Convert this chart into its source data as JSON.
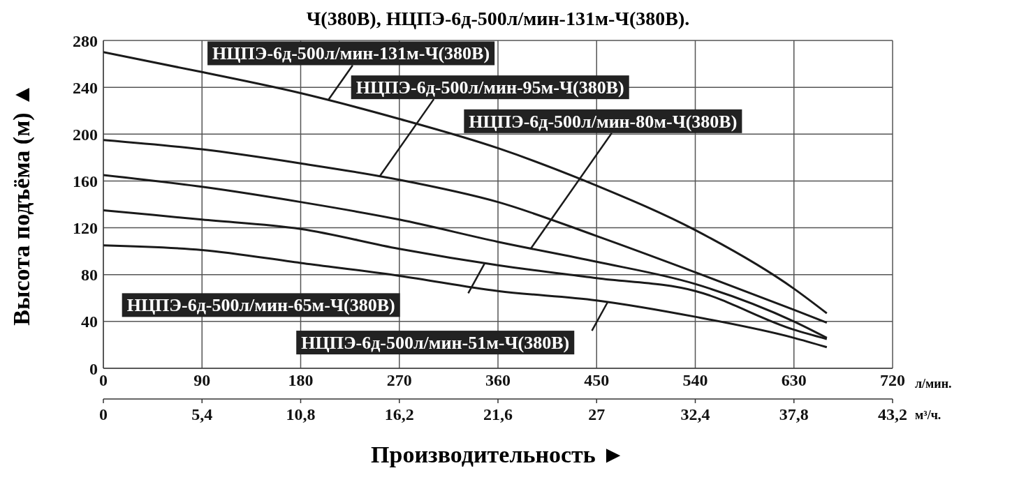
{
  "chart_data": {
    "type": "line",
    "title": "Ч(380В), НЦПЭ-6д-500л/мин-131м-Ч(380В).",
    "xlabel": "Производительность ►",
    "ylabel": "Высота подъёма (м) ▲",
    "annotations": [
      "л/мин.",
      "м³/ч."
    ],
    "x": [
      0,
      90,
      180,
      270,
      360,
      450,
      540,
      630,
      660
    ],
    "series": [
      {
        "name": "НЦПЭ-6д-500л/мин-131м-Ч(380В)",
        "color": "#1a1a1a",
        "values": [
          270,
          253,
          235,
          213,
          188,
          156,
          118,
          68,
          47
        ]
      },
      {
        "name": "НЦПЭ-6д-500л/мин-95м-Ч(380В)",
        "color": "#1a1a1a",
        "values": [
          195,
          187,
          175,
          161,
          142,
          113,
          82,
          50,
          39
        ]
      },
      {
        "name": "НЦПЭ-6д-500л/мин-80м-Ч(380В)",
        "color": "#1a1a1a",
        "values": [
          165,
          155,
          142,
          127,
          108,
          91,
          72,
          40,
          26
        ]
      },
      {
        "name": "НЦПЭ-6д-500л/мин-65м-Ч(380В)",
        "color": "#1a1a1a",
        "values": [
          135,
          127,
          119,
          102,
          88,
          77,
          66,
          33,
          25
        ]
      },
      {
        "name": "НЦПЭ-6д-500л/мин-51м-Ч(380В)",
        "color": "#1a1a1a",
        "values": [
          105,
          101,
          90,
          79,
          66,
          58,
          44,
          26,
          18
        ]
      }
    ],
    "xlim": [
      0,
      720
    ],
    "xticks": [
      0,
      90,
      180,
      270,
      360,
      450,
      540,
      630,
      720
    ],
    "x2lim": [
      0,
      43.2
    ],
    "x2ticks": [
      0,
      {
        "value": 5.4,
        "label": "5,4"
      },
      {
        "value": 10.8,
        "label": "10,8"
      },
      {
        "value": 16.2,
        "label": "16,2"
      },
      {
        "value": 21.6,
        "label": "21,6"
      },
      27,
      {
        "value": 32.4,
        "label": "32,4"
      },
      {
        "value": 37.8,
        "label": "37,8"
      },
      {
        "value": 43.2,
        "label": "43,2"
      }
    ],
    "ylim": [
      0,
      280
    ],
    "yticks": [
      0,
      40,
      80,
      120,
      160,
      200,
      240,
      280
    ],
    "grid": true
  }
}
